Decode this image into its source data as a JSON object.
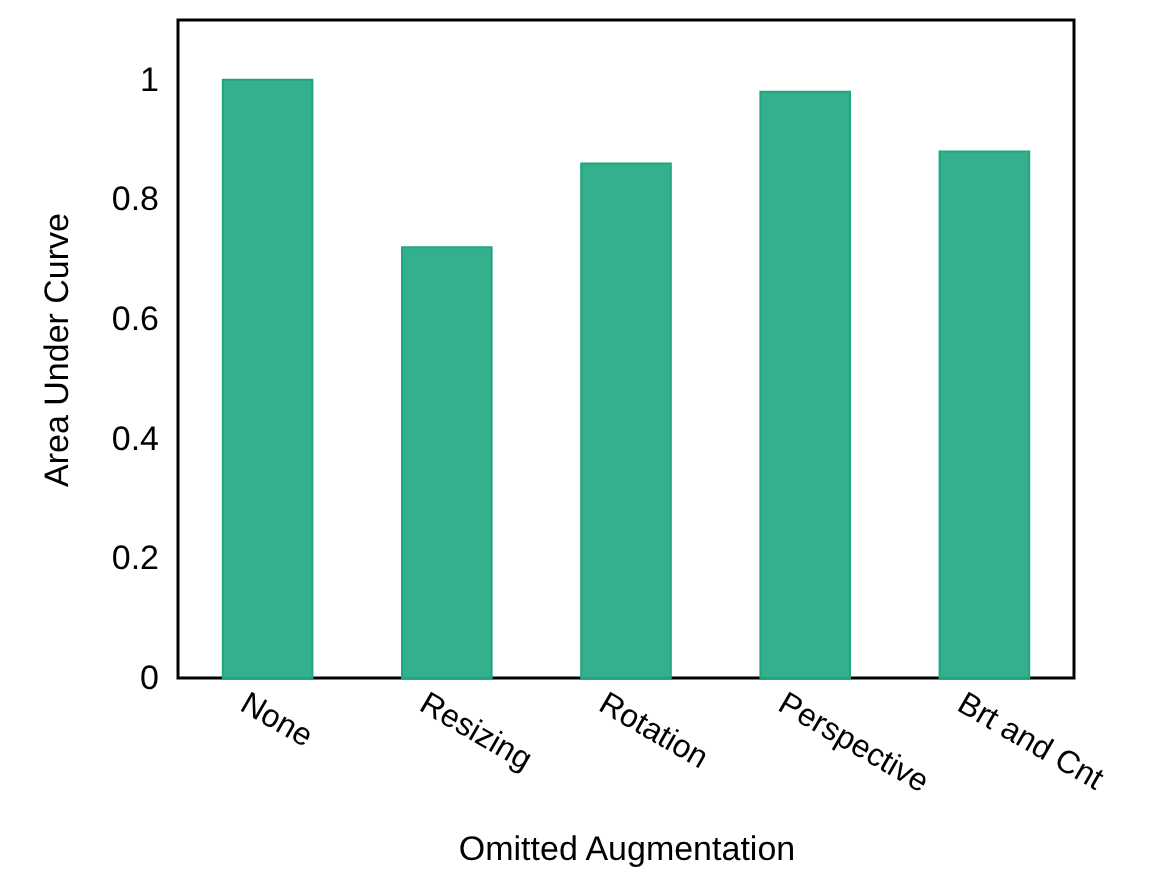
{
  "chart_data": {
    "type": "bar",
    "xlabel": "Omitted Augmentation",
    "ylabel": "Area Under Curve",
    "categories": [
      "None",
      "Resizing",
      "Rotation",
      "Perspective",
      "Brt and Cnt"
    ],
    "values": [
      1.0,
      0.72,
      0.86,
      0.98,
      0.88
    ],
    "color": "#35b08e",
    "ylim": [
      0,
      1.1
    ],
    "yticks": [
      0,
      0.2,
      0.4,
      0.6,
      0.8,
      1
    ],
    "grid": false
  }
}
